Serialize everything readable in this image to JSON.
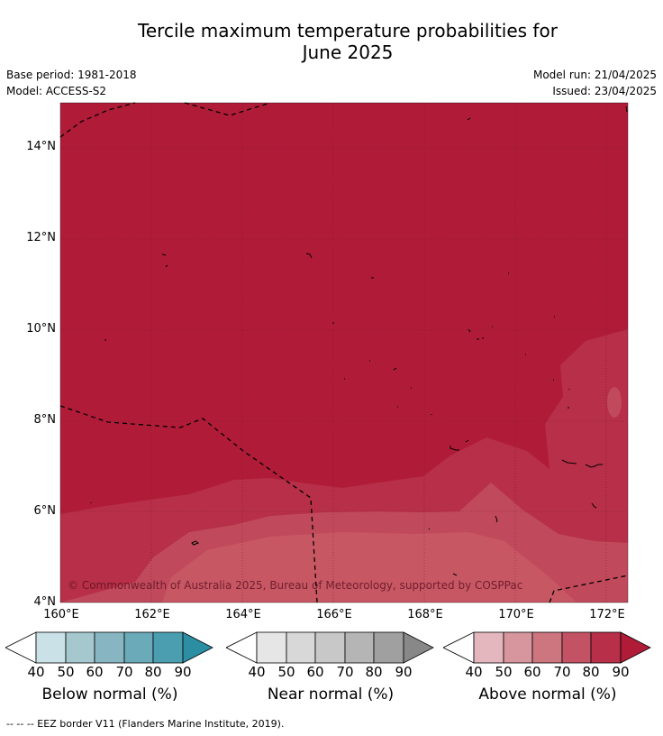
{
  "title_line1": "Tercile maximum temperature probabilities for",
  "title_line2": "June 2025",
  "base_period": "Base period: 1981-2018",
  "model": "Model: ACCESS-S2",
  "model_run": "Model run: 21/04/2025",
  "issued": "Issued: 23/04/2025",
  "lat_labels": [
    "14°N",
    "12°N",
    "10°N",
    "8°N",
    "6°N",
    "4°N"
  ],
  "lon_labels": [
    "160°E",
    "162°E",
    "164°E",
    "166°E",
    "168°E",
    "170°E",
    "172°E"
  ],
  "copyright": "© Commonwealth of Australia 2025, Bureau of Meteorology, supported by COSPPac",
  "colorbars": [
    {
      "label": "Below normal (%)",
      "ticks": [
        "40",
        "50",
        "60",
        "70",
        "80",
        "90"
      ],
      "colors": [
        "#ffffff",
        "#c9e1e7",
        "#a5c8cf",
        "#87b6c2",
        "#6aaab9",
        "#4b9db0",
        "#2b8ea2"
      ]
    },
    {
      "label": "Near normal (%)",
      "ticks": [
        "40",
        "50",
        "60",
        "70",
        "80",
        "90"
      ],
      "colors": [
        "#ffffff",
        "#e6e6e6",
        "#d8d8d8",
        "#c8c8c8",
        "#b5b5b5",
        "#a0a0a0",
        "#888888"
      ]
    },
    {
      "label": "Above normal (%)",
      "ticks": [
        "40",
        "50",
        "60",
        "70",
        "80",
        "90"
      ],
      "colors": [
        "#ffffff",
        "#e3b7bd",
        "#d7969e",
        "#cd7680",
        "#c35364",
        "#b72f48",
        "#b01c38"
      ]
    }
  ],
  "footer": "--  --  -- EEZ border V11 (Flanders Marine Institute, 2019).",
  "map_colors": {
    "above_90": "#b01c38",
    "above_80": "#b72f48",
    "above_70": "#c04a5b"
  }
}
